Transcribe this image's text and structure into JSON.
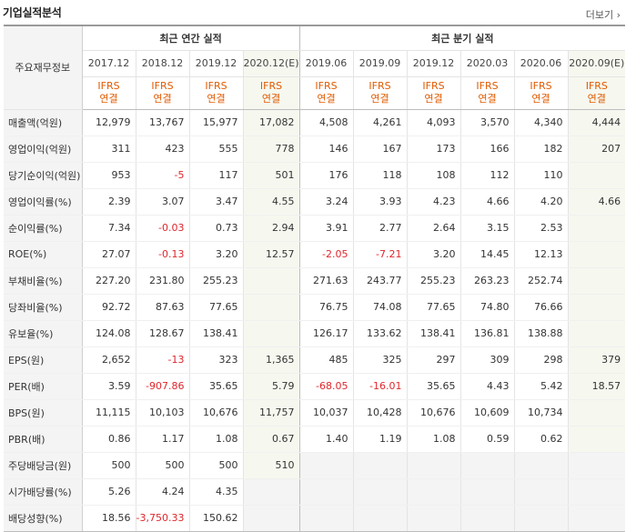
{
  "header": {
    "title": "기업실적분석",
    "more_label": "더보기 ›"
  },
  "table": {
    "label_header": "주요재무정보",
    "annual_title": "최근 연간 실적",
    "quarterly_title": "최근 분기 실적",
    "periods": [
      "2017.12",
      "2018.12",
      "2019.12",
      "2020.12(E)",
      "2019.06",
      "2019.09",
      "2019.12",
      "2020.03",
      "2020.06",
      "2020.09(E)"
    ],
    "type_line1": "IFRS",
    "type_line2": "연결",
    "rows": [
      {
        "label": "매출액(억원)",
        "values": [
          "12,979",
          "13,767",
          "15,977",
          "17,082",
          "4,508",
          "4,261",
          "4,093",
          "3,570",
          "4,340",
          "4,444"
        ]
      },
      {
        "label": "영업이익(억원)",
        "values": [
          "311",
          "423",
          "555",
          "778",
          "146",
          "167",
          "173",
          "166",
          "182",
          "207"
        ]
      },
      {
        "label": "당기순이익(억원)",
        "values": [
          "953",
          "-5",
          "117",
          "501",
          "176",
          "118",
          "108",
          "112",
          "110",
          ""
        ]
      },
      {
        "label": "영업이익률(%)",
        "values": [
          "2.39",
          "3.07",
          "3.47",
          "4.55",
          "3.24",
          "3.93",
          "4.23",
          "4.66",
          "4.20",
          "4.66"
        ]
      },
      {
        "label": "순이익률(%)",
        "values": [
          "7.34",
          "-0.03",
          "0.73",
          "2.94",
          "3.91",
          "2.77",
          "2.64",
          "3.15",
          "2.53",
          ""
        ]
      },
      {
        "label": "ROE(%)",
        "values": [
          "27.07",
          "-0.13",
          "3.20",
          "12.57",
          "-2.05",
          "-7.21",
          "3.20",
          "14.45",
          "12.13",
          ""
        ]
      },
      {
        "label": "부채비율(%)",
        "values": [
          "227.20",
          "231.80",
          "255.23",
          "",
          "271.63",
          "243.77",
          "255.23",
          "263.23",
          "252.74",
          ""
        ]
      },
      {
        "label": "당좌비율(%)",
        "values": [
          "92.72",
          "87.63",
          "77.65",
          "",
          "76.75",
          "74.08",
          "77.65",
          "74.80",
          "76.66",
          ""
        ]
      },
      {
        "label": "유보율(%)",
        "values": [
          "124.08",
          "128.67",
          "138.41",
          "",
          "126.17",
          "133.62",
          "138.41",
          "136.81",
          "138.88",
          ""
        ]
      },
      {
        "label": "EPS(원)",
        "values": [
          "2,652",
          "-13",
          "323",
          "1,365",
          "485",
          "325",
          "297",
          "309",
          "298",
          "379"
        ]
      },
      {
        "label": "PER(배)",
        "values": [
          "3.59",
          "-907.86",
          "35.65",
          "5.79",
          "-68.05",
          "-16.01",
          "35.65",
          "4.43",
          "5.42",
          "18.57"
        ]
      },
      {
        "label": "BPS(원)",
        "values": [
          "11,115",
          "10,103",
          "10,676",
          "11,757",
          "10,037",
          "10,428",
          "10,676",
          "10,609",
          "10,734",
          ""
        ]
      },
      {
        "label": "PBR(배)",
        "values": [
          "0.86",
          "1.17",
          "1.08",
          "0.67",
          "1.40",
          "1.19",
          "1.08",
          "0.59",
          "0.62",
          ""
        ]
      },
      {
        "label": "주당배당금(원)",
        "values": [
          "500",
          "500",
          "500",
          "510",
          "",
          "",
          "",
          "",
          "",
          ""
        ]
      },
      {
        "label": "시가배당률(%)",
        "values": [
          "5.26",
          "4.24",
          "4.35",
          "",
          "",
          "",
          "",
          "",
          "",
          ""
        ]
      },
      {
        "label": "배당성향(%)",
        "values": [
          "18.56",
          "-3,750.33",
          "150.62",
          "",
          "",
          "",
          "",
          "",
          "",
          ""
        ]
      }
    ]
  }
}
